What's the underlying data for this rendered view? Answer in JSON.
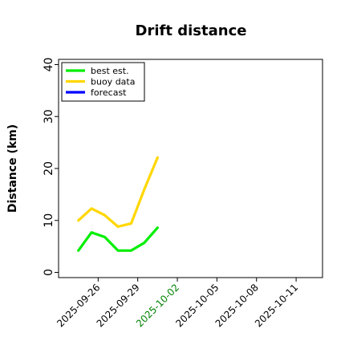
{
  "chart_data": {
    "type": "line",
    "title": "Drift distance",
    "xlabel": "",
    "ylabel": "Distance (km)",
    "xlim": [
      "2025-09-23",
      "2025-10-13"
    ],
    "ylim": [
      -1,
      41
    ],
    "yticks": [
      0,
      10,
      20,
      30,
      40
    ],
    "x_tick_labels": [
      "2025-09-26",
      "2025-09-29",
      "2025-10-02",
      "2025-10-05",
      "2025-10-08",
      "2025-10-11"
    ],
    "x_tick_colors": [
      "#000000",
      "#000000",
      "#008000",
      "#000000",
      "#000000",
      "#000000"
    ],
    "grid": false,
    "legend_position": "top-left",
    "series": [
      {
        "name": "best est.",
        "color": "#00ee00",
        "x": [
          "2025-09-24 12:00",
          "2025-09-25 12:00",
          "2025-09-26 12:00",
          "2025-09-27 12:00",
          "2025-09-28 12:00",
          "2025-09-29 12:00",
          "2025-09-30 12:00"
        ],
        "y": [
          4.2,
          7.7,
          6.8,
          4.2,
          4.2,
          5.7,
          8.6
        ]
      },
      {
        "name": "buoy data",
        "color": "#ffd700",
        "x": [
          "2025-09-24 12:00",
          "2025-09-25 12:00",
          "2025-09-26 12:00",
          "2025-09-27 12:00",
          "2025-09-28 12:00",
          "2025-09-29 12:00",
          "2025-09-30 12:00"
        ],
        "y": [
          10.0,
          12.3,
          11.0,
          8.8,
          9.4,
          16.0,
          22.1
        ]
      },
      {
        "name": "forecast",
        "color": "#0000ff",
        "x": [],
        "y": []
      }
    ]
  }
}
